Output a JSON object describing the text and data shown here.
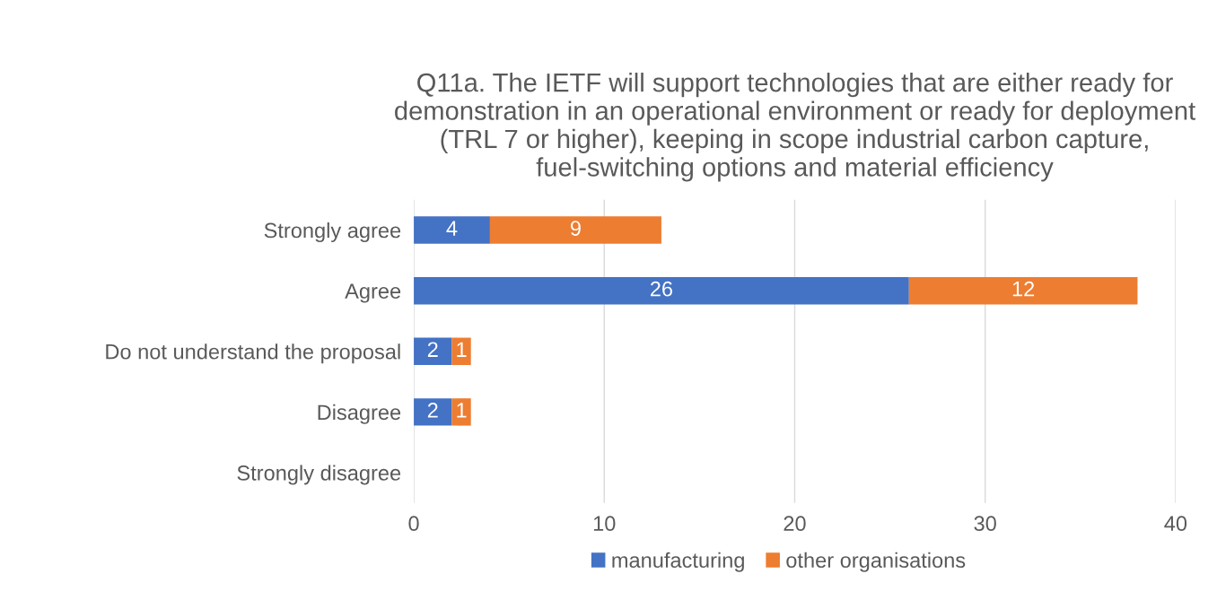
{
  "chart_data": {
    "type": "bar",
    "orientation": "horizontal",
    "stacked": true,
    "title": "Q11a. The IETF will support technologies that are either ready for demonstration in an operational environment or ready for deployment (TRL 7 or higher), keeping in scope industrial carbon capture, fuel-switching options and material efficiency",
    "categories": [
      "Strongly agree",
      "Agree",
      "Do not understand the proposal",
      "Disagree",
      "Strongly disagree"
    ],
    "series": [
      {
        "name": "manufacturing",
        "color": "#4472c4",
        "values": [
          4,
          26,
          2,
          2,
          0
        ],
        "value_labels": [
          "4",
          "26",
          "2",
          "2",
          null
        ]
      },
      {
        "name": "other organisations",
        "color": "#ed7d31",
        "values": [
          9,
          12,
          1,
          1,
          0
        ],
        "value_labels": [
          "9",
          "12",
          "1",
          "1",
          null
        ]
      }
    ],
    "xlim": [
      0,
      40
    ],
    "xticks": [
      0,
      10,
      20,
      30,
      40
    ],
    "grid": "x",
    "legend": "bottom"
  }
}
